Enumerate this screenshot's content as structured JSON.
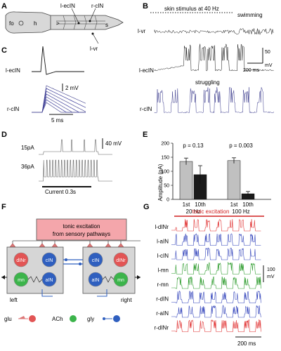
{
  "panels": {
    "A": {
      "label": "A",
      "body_labels": [
        "fo",
        "h",
        ">"
      ],
      "cell_labels": {
        "l_ecIN": "l-ecIN",
        "r_cIN": "r-cIN",
        "s": "s",
        "l_vr": "l-vr"
      }
    },
    "B": {
      "label": "B",
      "stimulus": "skin stimulus at 40 Hz",
      "swimming": "swimming",
      "struggling": "struggling",
      "traces": [
        "l-vr",
        "l-ecIN",
        "r-cIN"
      ],
      "scale_v": "50",
      "scale_v_unit": "mV",
      "scale_t": "200 ms"
    },
    "C": {
      "label": "C",
      "traces": [
        "l-ecIN",
        "r-cIN"
      ],
      "scale_v": "2 mV",
      "scale_t": "5 ms"
    },
    "D": {
      "label": "D",
      "currents": [
        "15pA",
        "36pA"
      ],
      "scale_v": "40 mV",
      "bar_label": "Current 0.3s"
    },
    "E": {
      "label": "E",
      "ylabel": "Amplitude (pA)",
      "chart_data": {
        "type": "bar",
        "ylabel": "Amplitude (pA)",
        "ylim": [
          0,
          200
        ],
        "yticks": [
          0,
          50,
          100,
          150,
          200
        ],
        "groups": [
          {
            "stim_label": "20 Hz",
            "p_value": "p = 0.13",
            "bars": [
              {
                "category": "1st",
                "value": 135,
                "err": 12,
                "color": "#c0c0c0"
              },
              {
                "category": "10th",
                "value": 88,
                "err": 32,
                "color": "#1a1a1a"
              }
            ]
          },
          {
            "stim_label": "100 Hz",
            "p_value": "p = 0.003",
            "bars": [
              {
                "category": "1st",
                "value": 138,
                "err": 10,
                "color": "#c0c0c0"
              },
              {
                "category": "10th",
                "value": 20,
                "err": 8,
                "color": "#1a1a1a"
              }
            ]
          }
        ]
      }
    },
    "F": {
      "label": "F",
      "box_line1": "tonic excitation",
      "box_line2": "from sensory pathways",
      "left_label": "left",
      "right_label": "right",
      "neurons_left": [
        "dINr",
        "cIN",
        "mn",
        "aIN"
      ],
      "neurons_right": [
        "cIN",
        "dINr",
        "aIN",
        "mn"
      ],
      "legend": [
        "glu",
        "ACh",
        "gly"
      ],
      "colors": {
        "glu": "#e25555",
        "ach": "#3cb44b",
        "gly": "#2f5fbf",
        "box": "#f4a6ab"
      }
    },
    "G": {
      "label": "G",
      "header": "tonic excitation",
      "traces": [
        "l-dINr",
        "l-aIN",
        "l-cIN",
        "l-mn",
        "r-mn",
        "r-dIN",
        "r-aIN",
        "r-dINr"
      ],
      "trace_colors": [
        "#e03030",
        "#3344bb",
        "#3344bb",
        "#2a9a2a",
        "#2a9a2a",
        "#3344bb",
        "#3344bb",
        "#e03030"
      ],
      "scale_v": "100",
      "scale_v_unit": "mV",
      "scale_t": "200 ms"
    }
  }
}
